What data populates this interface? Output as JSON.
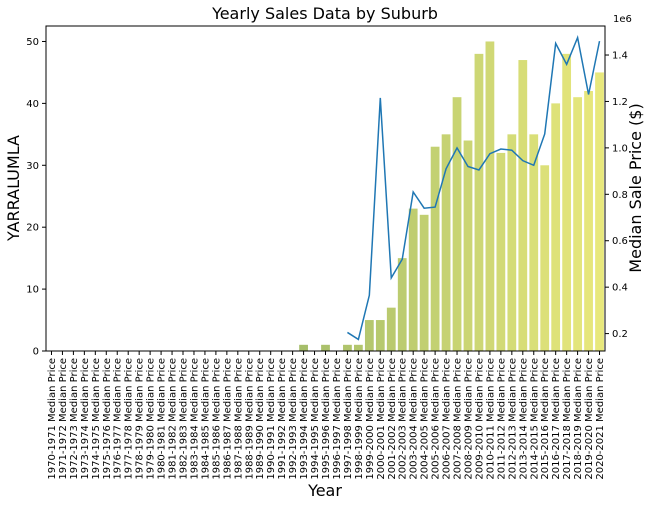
{
  "chart_data": {
    "type": "bar",
    "title": "Yearly Sales Data by Suburb",
    "xlabel": "Year",
    "ylabel": "YARRALUMLA",
    "y2label": "Median Sale Price ($)",
    "y2_offset_text": "1e6",
    "ylim": [
      0,
      52.5
    ],
    "y2lim": [
      0.125,
      1.525
    ],
    "yticks": [
      0,
      10,
      20,
      30,
      40,
      50
    ],
    "y2ticks": [
      0.2,
      0.4,
      0.6,
      0.8,
      1.0,
      1.2,
      1.4
    ],
    "y2ticklabels": [
      "0.2",
      "0.4",
      "0.6",
      "0.8",
      "1.0",
      "1.2",
      "1.4"
    ],
    "categories": [
      "1970-1971 Median Price",
      "1971-1972 Median Price",
      "1972-1973 Median Price",
      "1973-1974 Median Price",
      "1974-1975 Median Price",
      "1975-1976 Median Price",
      "1976-1977 Median Price",
      "1977-1978 Median Price",
      "1978-1979 Median Price",
      "1979-1980 Median Price",
      "1980-1981 Median Price",
      "1981-1982 Median Price",
      "1982-1983 Median Price",
      "1983-1984 Median Price",
      "1984-1985 Median Price",
      "1985-1986 Median Price",
      "1986-1987 Median Price",
      "1987-1988 Median Price",
      "1988-1989 Median Price",
      "1989-1990 Median Price",
      "1990-1991 Median Price",
      "1991-1992 Median Price",
      "1992-1993 Median Price",
      "1993-1994 Median Price",
      "1994-1995 Median Price",
      "1995-1996 Median Price",
      "1996-1997 Median Price",
      "1997-1998 Median Price",
      "1998-1999 Median Price",
      "1999-2000 Median Price",
      "2000-2001 Median Price",
      "2001-2002 Median Price",
      "2002-2003 Median Price",
      "2003-2004 Median Price",
      "2004-2005 Median Price",
      "2005-2006 Median Price",
      "2006-2007 Median Price",
      "2007-2008 Median Price",
      "2008-2009 Median Price",
      "2009-2010 Median Price",
      "2010-2011 Median Price",
      "2011-2012 Median Price",
      "2012-2013 Median Price",
      "2013-2014 Median Price",
      "2014-2015 Median Price",
      "2015-2016 Median Price",
      "2016-2017 Median Price",
      "2017-2018 Median Price",
      "2018-2019 Median Price",
      "2019-2020 Median Price",
      "2020-2021 Median Price"
    ],
    "bar_values": [
      0,
      0,
      0,
      0,
      0,
      0,
      0,
      0,
      0,
      0,
      0,
      0,
      0,
      0,
      0,
      0,
      0,
      0,
      0,
      0,
      0,
      0,
      0,
      1,
      0,
      1,
      0,
      1,
      1,
      5,
      5,
      7,
      15,
      23,
      22,
      33,
      35,
      41,
      34,
      48,
      50,
      32,
      35,
      47,
      35,
      30,
      40,
      48,
      41,
      42,
      45
    ],
    "line_values": [
      null,
      null,
      null,
      null,
      null,
      null,
      null,
      null,
      null,
      null,
      null,
      null,
      null,
      null,
      null,
      null,
      null,
      null,
      null,
      null,
      null,
      null,
      null,
      null,
      null,
      null,
      null,
      0.205,
      0.175,
      0.365,
      1.215,
      0.44,
      0.52,
      0.81,
      0.74,
      0.745,
      0.91,
      1.0,
      0.92,
      0.905,
      0.975,
      0.995,
      0.99,
      0.945,
      0.925,
      1.06,
      1.45,
      1.36,
      1.475,
      1.23,
      1.46
    ],
    "colors": {
      "bar_start": "#6e9a5a",
      "bar_end": "#e8e87c",
      "line": "#1f77b4"
    },
    "grid": false,
    "legend": "none"
  }
}
